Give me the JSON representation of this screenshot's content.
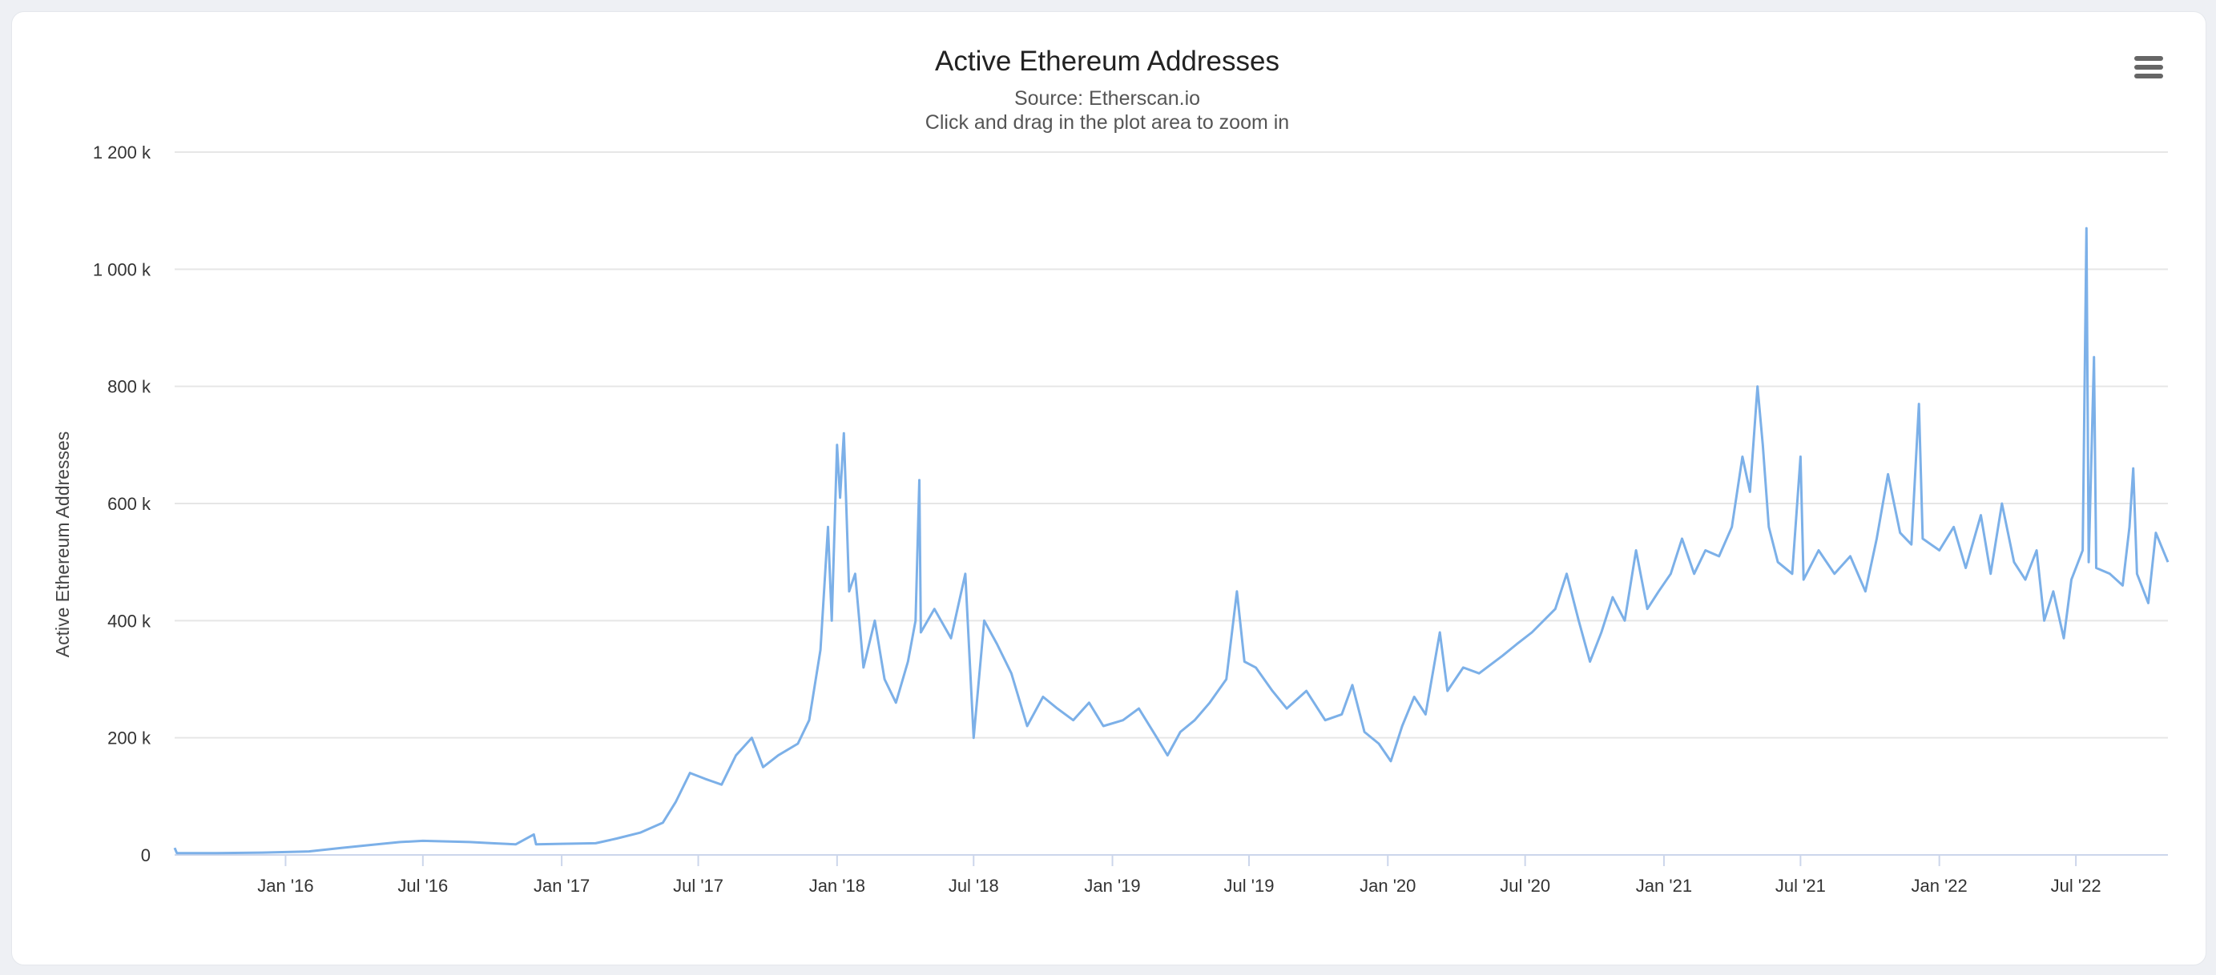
{
  "menu": {
    "icon": "hamburger-menu-icon"
  },
  "chart_data": {
    "type": "line",
    "title": "Active Ethereum Addresses",
    "subtitle": "Source: Etherscan.io",
    "subtitle2": "Click and drag in the plot area to zoom in",
    "xlabel": "",
    "ylabel": "Active Ethereum Addresses",
    "ylim": [
      0,
      1200000
    ],
    "xlim": [
      "2015-08-07",
      "2022-10-31"
    ],
    "y_ticks": [
      {
        "value": 0,
        "label": "0"
      },
      {
        "value": 200000,
        "label": "200 k"
      },
      {
        "value": 400000,
        "label": "400 k"
      },
      {
        "value": 600000,
        "label": "600 k"
      },
      {
        "value": 800000,
        "label": "800 k"
      },
      {
        "value": 1000000,
        "label": "1 000 k"
      },
      {
        "value": 1200000,
        "label": "1 200 k"
      }
    ],
    "x_ticks": [
      {
        "date": "2016-01-01",
        "label": "Jan '16"
      },
      {
        "date": "2016-07-01",
        "label": "Jul '16"
      },
      {
        "date": "2017-01-01",
        "label": "Jan '17"
      },
      {
        "date": "2017-07-01",
        "label": "Jul '17"
      },
      {
        "date": "2018-01-01",
        "label": "Jan '18"
      },
      {
        "date": "2018-07-01",
        "label": "Jul '18"
      },
      {
        "date": "2019-01-01",
        "label": "Jan '19"
      },
      {
        "date": "2019-07-01",
        "label": "Jul '19"
      },
      {
        "date": "2020-01-01",
        "label": "Jan '20"
      },
      {
        "date": "2020-07-01",
        "label": "Jul '20"
      },
      {
        "date": "2021-01-01",
        "label": "Jan '21"
      },
      {
        "date": "2021-07-01",
        "label": "Jul '21"
      },
      {
        "date": "2022-01-01",
        "label": "Jan '22"
      },
      {
        "date": "2022-07-01",
        "label": "Jul '22"
      }
    ],
    "grid": true,
    "line_color": "#7cb0e8",
    "series": [
      {
        "points": [
          [
            "2015-08-07",
            12000
          ],
          [
            "2015-08-10",
            3000
          ],
          [
            "2015-10-01",
            3000
          ],
          [
            "2015-12-01",
            4000
          ],
          [
            "2016-02-01",
            6000
          ],
          [
            "2016-03-15",
            12000
          ],
          [
            "2016-05-01",
            18000
          ],
          [
            "2016-06-01",
            22000
          ],
          [
            "2016-07-01",
            24000
          ],
          [
            "2016-09-01",
            22000
          ],
          [
            "2016-10-01",
            20000
          ],
          [
            "2016-11-01",
            18000
          ],
          [
            "2016-11-25",
            35000
          ],
          [
            "2016-11-28",
            18000
          ],
          [
            "2017-01-01",
            19000
          ],
          [
            "2017-02-15",
            20000
          ],
          [
            "2017-03-15",
            28000
          ],
          [
            "2017-04-15",
            38000
          ],
          [
            "2017-05-15",
            55000
          ],
          [
            "2017-06-01",
            90000
          ],
          [
            "2017-06-20",
            140000
          ],
          [
            "2017-07-10",
            130000
          ],
          [
            "2017-08-01",
            120000
          ],
          [
            "2017-08-20",
            170000
          ],
          [
            "2017-09-10",
            200000
          ],
          [
            "2017-09-25",
            150000
          ],
          [
            "2017-10-15",
            170000
          ],
          [
            "2017-11-10",
            190000
          ],
          [
            "2017-11-25",
            230000
          ],
          [
            "2017-12-10",
            350000
          ],
          [
            "2017-12-20",
            560000
          ],
          [
            "2017-12-25",
            400000
          ],
          [
            "2018-01-01",
            700000
          ],
          [
            "2018-01-05",
            610000
          ],
          [
            "2018-01-10",
            720000
          ],
          [
            "2018-01-17",
            450000
          ],
          [
            "2018-01-25",
            480000
          ],
          [
            "2018-02-05",
            320000
          ],
          [
            "2018-02-20",
            400000
          ],
          [
            "2018-03-05",
            300000
          ],
          [
            "2018-03-20",
            260000
          ],
          [
            "2018-04-05",
            330000
          ],
          [
            "2018-04-15",
            400000
          ],
          [
            "2018-04-20",
            640000
          ],
          [
            "2018-04-22",
            380000
          ],
          [
            "2018-05-10",
            420000
          ],
          [
            "2018-06-01",
            370000
          ],
          [
            "2018-06-20",
            480000
          ],
          [
            "2018-07-01",
            200000
          ],
          [
            "2018-07-15",
            400000
          ],
          [
            "2018-08-01",
            360000
          ],
          [
            "2018-08-20",
            310000
          ],
          [
            "2018-09-10",
            220000
          ],
          [
            "2018-10-01",
            270000
          ],
          [
            "2018-10-20",
            250000
          ],
          [
            "2018-11-10",
            230000
          ],
          [
            "2018-12-01",
            260000
          ],
          [
            "2018-12-20",
            220000
          ],
          [
            "2019-01-15",
            230000
          ],
          [
            "2019-02-05",
            250000
          ],
          [
            "2019-03-01",
            200000
          ],
          [
            "2019-03-15",
            170000
          ],
          [
            "2019-04-01",
            210000
          ],
          [
            "2019-04-20",
            230000
          ],
          [
            "2019-05-10",
            260000
          ],
          [
            "2019-06-01",
            300000
          ],
          [
            "2019-06-15",
            450000
          ],
          [
            "2019-06-25",
            330000
          ],
          [
            "2019-07-10",
            320000
          ],
          [
            "2019-08-01",
            280000
          ],
          [
            "2019-08-20",
            250000
          ],
          [
            "2019-09-15",
            280000
          ],
          [
            "2019-10-10",
            230000
          ],
          [
            "2019-11-01",
            240000
          ],
          [
            "2019-11-15",
            290000
          ],
          [
            "2019-12-01",
            210000
          ],
          [
            "2019-12-20",
            190000
          ],
          [
            "2020-01-05",
            160000
          ],
          [
            "2020-01-20",
            220000
          ],
          [
            "2020-02-05",
            270000
          ],
          [
            "2020-02-20",
            240000
          ],
          [
            "2020-03-10",
            380000
          ],
          [
            "2020-03-20",
            280000
          ],
          [
            "2020-04-10",
            320000
          ],
          [
            "2020-05-01",
            310000
          ],
          [
            "2020-06-01",
            340000
          ],
          [
            "2020-06-20",
            360000
          ],
          [
            "2020-07-10",
            380000
          ],
          [
            "2020-08-10",
            420000
          ],
          [
            "2020-08-25",
            480000
          ],
          [
            "2020-09-10",
            400000
          ],
          [
            "2020-09-25",
            330000
          ],
          [
            "2020-10-10",
            380000
          ],
          [
            "2020-10-25",
            440000
          ],
          [
            "2020-11-10",
            400000
          ],
          [
            "2020-11-25",
            520000
          ],
          [
            "2020-12-10",
            420000
          ],
          [
            "2020-12-25",
            450000
          ],
          [
            "2021-01-10",
            480000
          ],
          [
            "2021-01-25",
            540000
          ],
          [
            "2021-02-10",
            480000
          ],
          [
            "2021-02-25",
            520000
          ],
          [
            "2021-03-15",
            510000
          ],
          [
            "2021-04-01",
            560000
          ],
          [
            "2021-04-15",
            680000
          ],
          [
            "2021-04-25",
            620000
          ],
          [
            "2021-05-05",
            800000
          ],
          [
            "2021-05-12",
            700000
          ],
          [
            "2021-05-20",
            560000
          ],
          [
            "2021-06-01",
            500000
          ],
          [
            "2021-06-20",
            480000
          ],
          [
            "2021-07-01",
            680000
          ],
          [
            "2021-07-05",
            470000
          ],
          [
            "2021-07-25",
            520000
          ],
          [
            "2021-08-15",
            480000
          ],
          [
            "2021-09-05",
            510000
          ],
          [
            "2021-09-25",
            450000
          ],
          [
            "2021-10-10",
            540000
          ],
          [
            "2021-10-25",
            650000
          ],
          [
            "2021-11-10",
            550000
          ],
          [
            "2021-11-25",
            530000
          ],
          [
            "2021-12-05",
            770000
          ],
          [
            "2021-12-10",
            540000
          ],
          [
            "2022-01-01",
            520000
          ],
          [
            "2022-01-20",
            560000
          ],
          [
            "2022-02-05",
            490000
          ],
          [
            "2022-02-25",
            580000
          ],
          [
            "2022-03-10",
            480000
          ],
          [
            "2022-03-25",
            600000
          ],
          [
            "2022-04-10",
            500000
          ],
          [
            "2022-04-25",
            470000
          ],
          [
            "2022-05-10",
            520000
          ],
          [
            "2022-05-20",
            400000
          ],
          [
            "2022-06-01",
            450000
          ],
          [
            "2022-06-15",
            370000
          ],
          [
            "2022-06-25",
            470000
          ],
          [
            "2022-07-10",
            520000
          ],
          [
            "2022-07-15",
            1070000
          ],
          [
            "2022-07-18",
            500000
          ],
          [
            "2022-07-25",
            850000
          ],
          [
            "2022-07-28",
            490000
          ],
          [
            "2022-08-15",
            480000
          ],
          [
            "2022-09-01",
            460000
          ],
          [
            "2022-09-10",
            560000
          ],
          [
            "2022-09-15",
            660000
          ],
          [
            "2022-09-20",
            480000
          ],
          [
            "2022-10-05",
            430000
          ],
          [
            "2022-10-15",
            550000
          ],
          [
            "2022-10-31",
            500000
          ]
        ]
      }
    ]
  }
}
